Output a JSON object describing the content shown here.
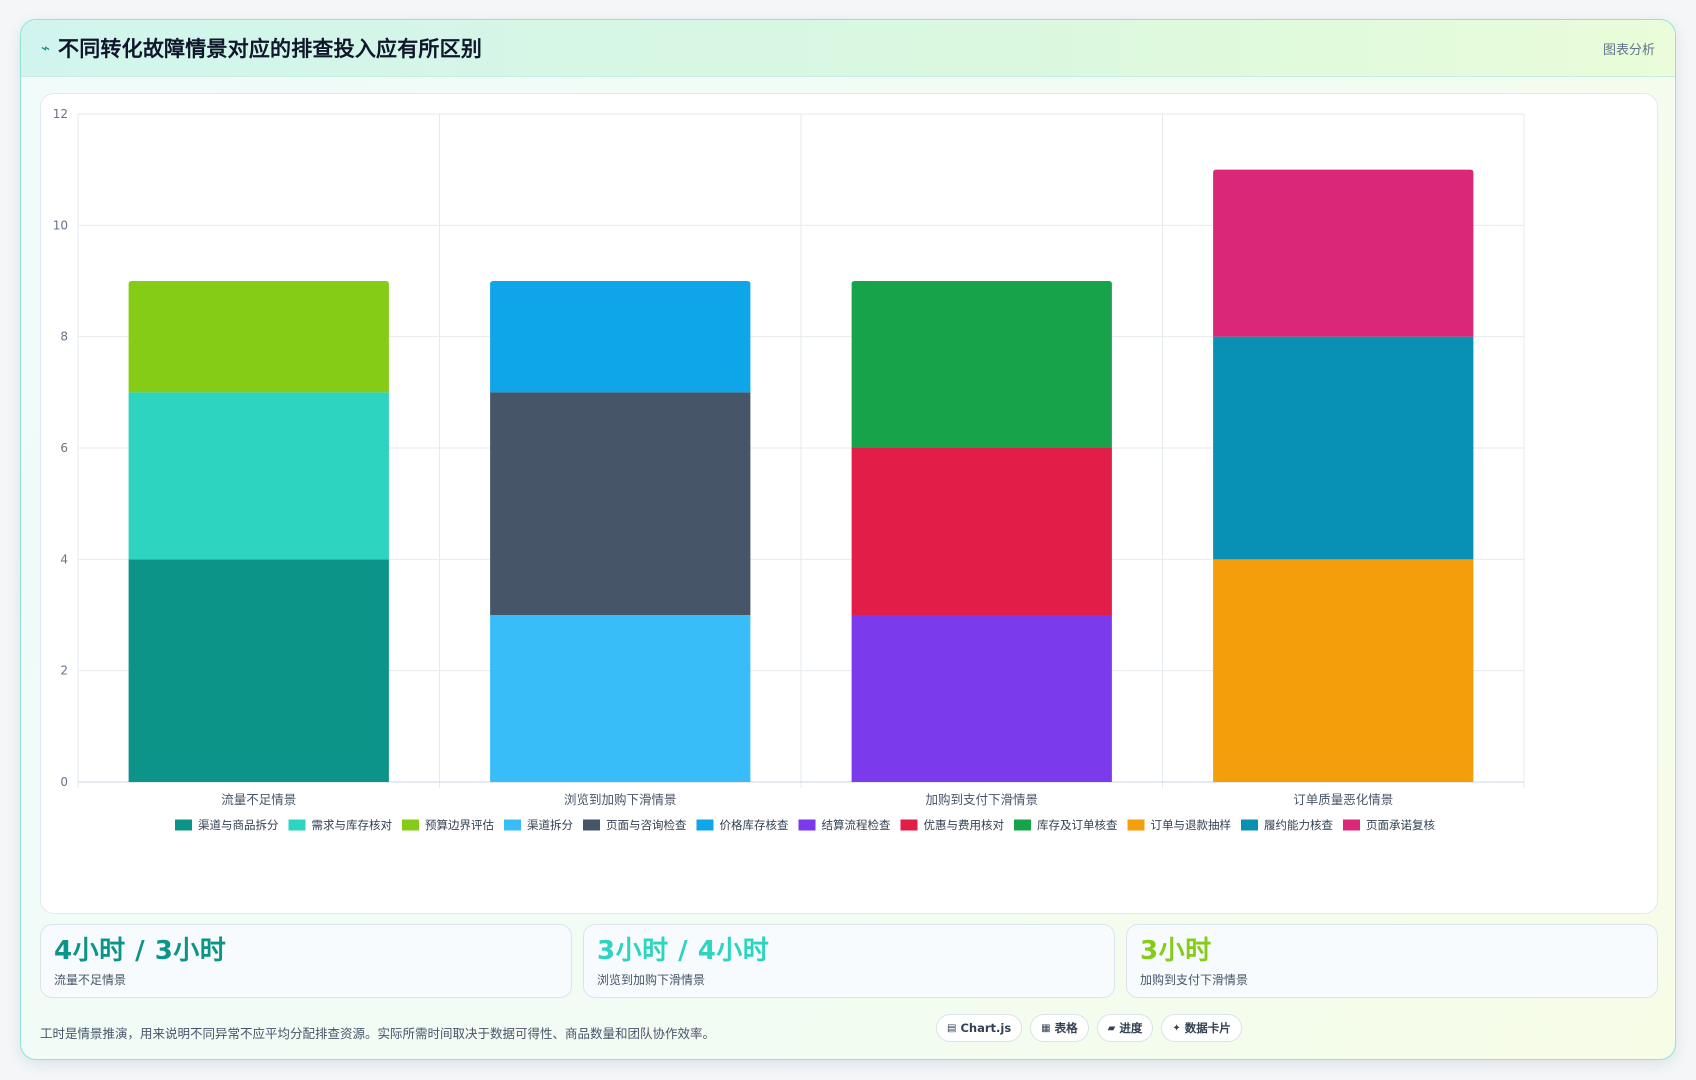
{
  "header": {
    "icon": "trend-line-icon",
    "title": "不同转化故障情景对应的排查投入应有所区别",
    "right_label": "图表分析"
  },
  "chart_data": {
    "type": "bar",
    "stacked": true,
    "categories": [
      "流量不足情景",
      "浏览到加购下滑情景",
      "加购到支付下滑情景",
      "订单质量恶化情景"
    ],
    "ylim": [
      0,
      12
    ],
    "yticks": [
      0,
      2,
      4,
      6,
      8,
      10,
      12
    ],
    "grid": true,
    "legend_position": "bottom",
    "series": [
      {
        "name": "渠道与商品拆分",
        "color": "#0d9488",
        "values": [
          4,
          0,
          0,
          0
        ]
      },
      {
        "name": "需求与库存核对",
        "color": "#2dd4bf",
        "values": [
          3,
          0,
          0,
          0
        ]
      },
      {
        "name": "预算边界评估",
        "color": "#84cc16",
        "values": [
          2,
          0,
          0,
          0
        ]
      },
      {
        "name": "渠道拆分",
        "color": "#38bdf8",
        "values": [
          0,
          3,
          0,
          0
        ]
      },
      {
        "name": "页面与咨询检查",
        "color": "#475569",
        "values": [
          0,
          4,
          0,
          0
        ]
      },
      {
        "name": "价格库存核查",
        "color": "#0ea5e9",
        "values": [
          0,
          2,
          0,
          0
        ]
      },
      {
        "name": "结算流程检查",
        "color": "#7c3aed",
        "values": [
          0,
          0,
          3,
          0
        ]
      },
      {
        "name": "优惠与费用核对",
        "color": "#e11d48",
        "values": [
          0,
          0,
          3,
          0
        ]
      },
      {
        "name": "库存及订单核查",
        "color": "#16a34a",
        "values": [
          0,
          0,
          3,
          0
        ]
      },
      {
        "name": "订单与退款抽样",
        "color": "#f59e0b",
        "values": [
          0,
          0,
          0,
          4
        ]
      },
      {
        "name": "履约能力核查",
        "color": "#0891b2",
        "values": [
          0,
          0,
          0,
          4
        ]
      },
      {
        "name": "页面承诺复核",
        "color": "#db2777",
        "values": [
          0,
          0,
          0,
          3
        ]
      }
    ]
  },
  "stats": [
    {
      "value": "4小时 / 3小时",
      "label": "流量不足情景",
      "color": "#0d9488"
    },
    {
      "value": "3小时 / 4小时",
      "label": "浏览到加购下滑情景",
      "color": "#2dd4bf"
    },
    {
      "value": "3小时",
      "label": "加购到支付下滑情景",
      "color": "#84cc16"
    }
  ],
  "footnote": "工时是情景推演，用来说明不同异常不应平均分配排查资源。实际所需时间取决于数据可得性、商品数量和团队协作效率。",
  "chips": [
    {
      "icon": "chart-icon",
      "glyph": "▤",
      "label": "Chart.js"
    },
    {
      "icon": "table-icon",
      "glyph": "▦",
      "label": "表格"
    },
    {
      "icon": "progress-icon",
      "glyph": "▰",
      "label": "进度"
    },
    {
      "icon": "sparkle-icon",
      "glyph": "✦",
      "label": "数据卡片"
    }
  ]
}
